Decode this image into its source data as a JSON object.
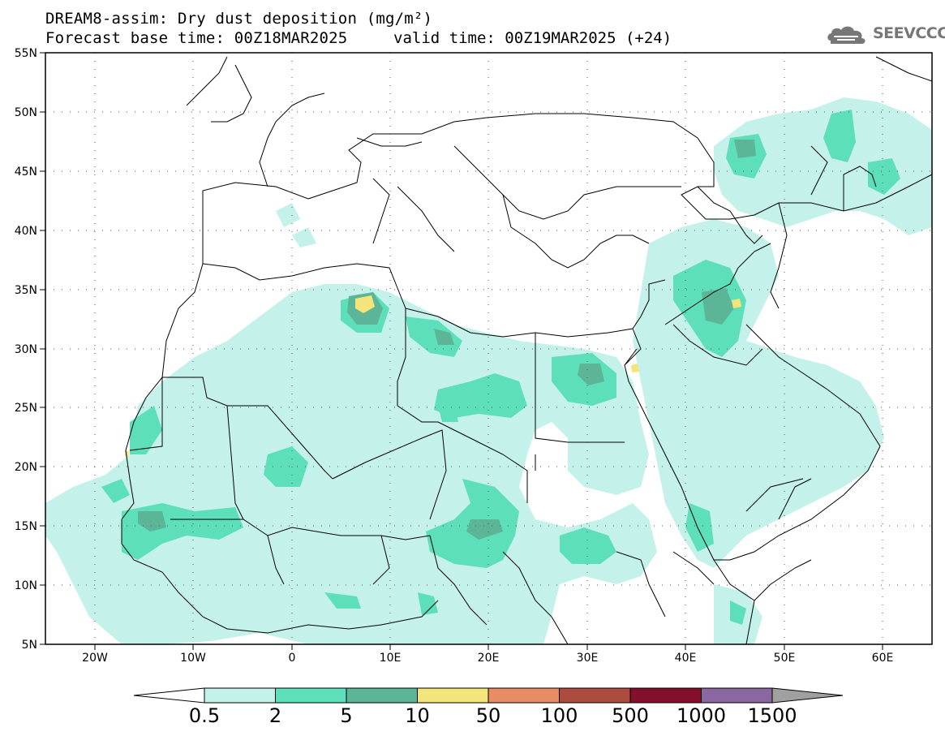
{
  "title": {
    "line1": "DREAM8-assim: Dry dust deposition (mg/m²)",
    "line2": "Forecast base time: 00Z18MAR2025",
    "valid": "valid time: 00Z19MAR2025 (+24)"
  },
  "logo": {
    "text": "SEEVCCC",
    "icon": "cloud-logo-icon"
  },
  "map": {
    "lat_labels": [
      "55N",
      "50N",
      "45N",
      "40N",
      "35N",
      "30N",
      "25N",
      "20N",
      "15N",
      "10N",
      "5N"
    ],
    "lon_labels": [
      "20W",
      "10W",
      "0",
      "10E",
      "20E",
      "30E",
      "40E",
      "50E",
      "60E"
    ],
    "lat_range": [
      5,
      55
    ],
    "lon_range": [
      -25,
      65
    ],
    "grid": "dotted"
  },
  "colorbar": {
    "labels": [
      "0.5",
      "2",
      "5",
      "10",
      "50",
      "100",
      "500",
      "1000",
      "1500"
    ],
    "colors": [
      "#c4f2ea",
      "#5ddfba",
      "#5bb596",
      "#f4e47c",
      "#e98b64",
      "#ad4c3e",
      "#840f2a",
      "#8a67a0",
      "#a0a0a0"
    ],
    "under_color": "#ffffff"
  },
  "levels": {
    "c1": "#c4f2ea",
    "c2": "#5ddfba",
    "c3": "#5bb596",
    "c4": "#f4e47c"
  }
}
